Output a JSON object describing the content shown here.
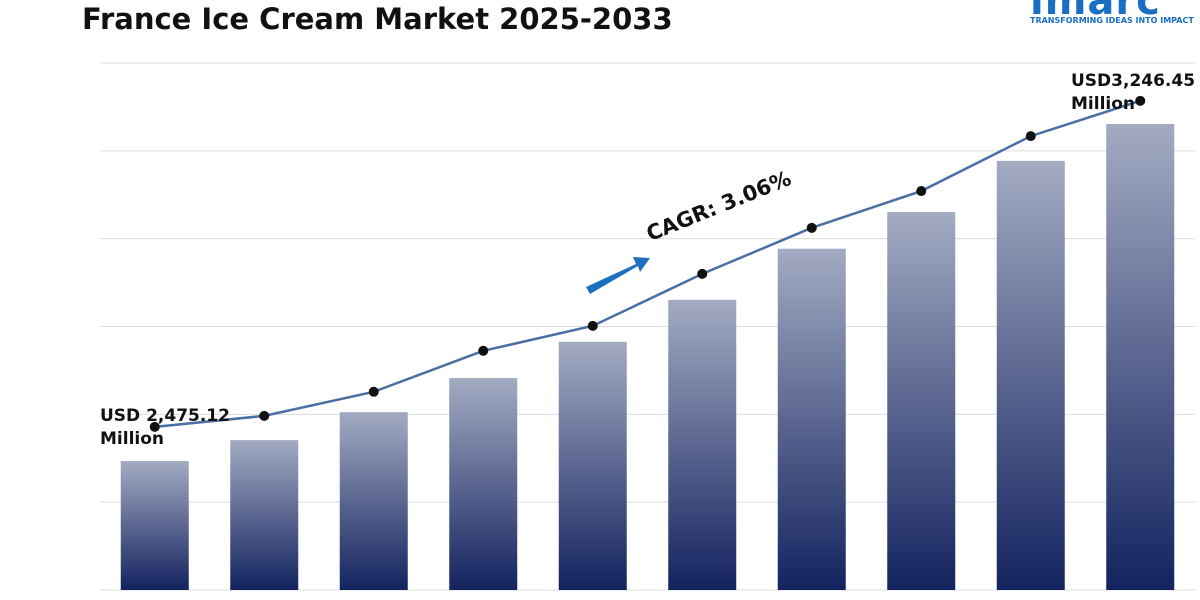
{
  "chart_data": {
    "type": "bar",
    "title": "France Ice Cream Market 2025-2033",
    "logo": {
      "name": "imarc",
      "tagline": "TRANSFORMING IDEAS INTO IMPACT"
    },
    "annotations": {
      "start": "USD 2,475.12 Million",
      "end": "USD3,246.45 Million",
      "cagr": "CAGR: 3.06%"
    },
    "categories": [
      null,
      null,
      null,
      null,
      null,
      null,
      null,
      null,
      null,
      null
    ],
    "series": [
      {
        "color": "#13235f",
        "values": [
          2475.12,
          2523,
          2587,
          2665,
          2748,
          2844,
          2961,
          3045,
          3162,
          3246.45
        ]
      },
      {
        "type": "line",
        "axis": "y2",
        "color": "#4a6fa5",
        "values": [
          2475.12,
          2501,
          2558,
          2655,
          2714,
          2837,
          2946,
          3033,
          3163,
          3246.45
        ]
      }
    ],
    "ylim": [
      2180,
      3386
    ],
    "y2lim": [
      2089,
      3336
    ],
    "grid": true
  }
}
